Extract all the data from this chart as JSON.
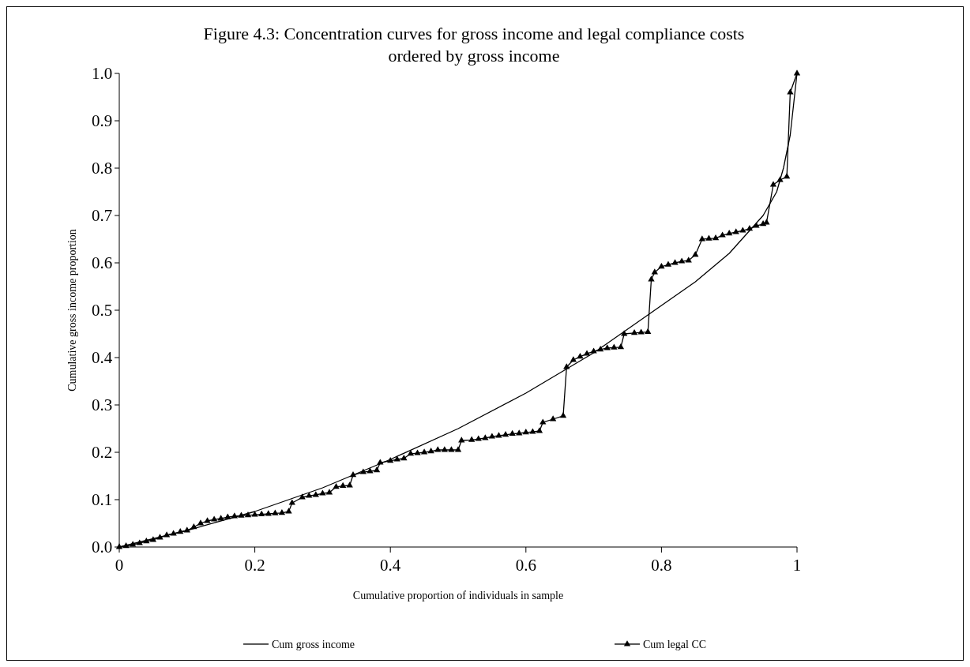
{
  "chart_data": {
    "type": "line",
    "title": "Figure 4.3: Concentration curves for gross income and legal compliance costs ordered by gross income",
    "xlabel": "Cumulative proportion of individuals in sample",
    "ylabel": "Cumulative gross income proportion",
    "xlim": [
      0,
      1
    ],
    "xticks": [
      0,
      0.2,
      0.4,
      0.6,
      0.8,
      1
    ],
    "ylim": [
      0,
      1
    ],
    "yticks": [
      {
        "value": 0,
        "label": "0.0"
      },
      0.1,
      0.2,
      0.3,
      0.4,
      0.5,
      0.6,
      0.7,
      0.8,
      0.9,
      {
        "value": 1,
        "label": "1.0"
      }
    ],
    "grid": false,
    "legend": "bottom",
    "series": [
      {
        "name": "Cum gross income",
        "color": "#000000",
        "marker": "none",
        "x": [
          0,
          0.1,
          0.2,
          0.3,
          0.4,
          0.5,
          0.6,
          0.7,
          0.8,
          0.85,
          0.9,
          0.95,
          0.97,
          0.98,
          0.99,
          1
        ],
        "values": [
          0,
          0.035,
          0.075,
          0.125,
          0.185,
          0.25,
          0.325,
          0.41,
          0.51,
          0.56,
          0.62,
          0.7,
          0.75,
          0.8,
          0.87,
          1
        ]
      },
      {
        "name": "Cum legal CC",
        "color": "#000000",
        "marker": "triangle",
        "x": [
          0,
          0.01,
          0.02,
          0.03,
          0.04,
          0.05,
          0.06,
          0.07,
          0.08,
          0.09,
          0.1,
          0.11,
          0.12,
          0.13,
          0.14,
          0.15,
          0.16,
          0.17,
          0.18,
          0.19,
          0.2,
          0.21,
          0.22,
          0.23,
          0.24,
          0.25,
          0.255,
          0.27,
          0.28,
          0.29,
          0.3,
          0.31,
          0.32,
          0.33,
          0.34,
          0.345,
          0.36,
          0.37,
          0.38,
          0.385,
          0.4,
          0.41,
          0.42,
          0.43,
          0.44,
          0.45,
          0.46,
          0.47,
          0.48,
          0.49,
          0.5,
          0.505,
          0.52,
          0.53,
          0.54,
          0.55,
          0.56,
          0.57,
          0.58,
          0.59,
          0.6,
          0.61,
          0.62,
          0.625,
          0.64,
          0.655,
          0.66,
          0.67,
          0.68,
          0.69,
          0.7,
          0.71,
          0.72,
          0.73,
          0.74,
          0.745,
          0.76,
          0.77,
          0.78,
          0.785,
          0.79,
          0.8,
          0.81,
          0.82,
          0.83,
          0.84,
          0.85,
          0.86,
          0.87,
          0.88,
          0.89,
          0.9,
          0.91,
          0.92,
          0.93,
          0.94,
          0.95,
          0.955,
          0.965,
          0.975,
          0.985,
          0.99,
          1
        ],
        "values": [
          0,
          0.002,
          0.005,
          0.008,
          0.012,
          0.015,
          0.02,
          0.025,
          0.028,
          0.032,
          0.035,
          0.042,
          0.05,
          0.055,
          0.058,
          0.06,
          0.063,
          0.065,
          0.066,
          0.067,
          0.068,
          0.069,
          0.07,
          0.071,
          0.072,
          0.075,
          0.093,
          0.105,
          0.108,
          0.11,
          0.113,
          0.115,
          0.127,
          0.129,
          0.13,
          0.152,
          0.158,
          0.16,
          0.162,
          0.178,
          0.182,
          0.185,
          0.187,
          0.197,
          0.198,
          0.2,
          0.202,
          0.205,
          0.205,
          0.205,
          0.205,
          0.225,
          0.226,
          0.228,
          0.23,
          0.233,
          0.235,
          0.237,
          0.239,
          0.24,
          0.242,
          0.243,
          0.245,
          0.263,
          0.27,
          0.277,
          0.38,
          0.395,
          0.402,
          0.408,
          0.413,
          0.417,
          0.42,
          0.421,
          0.422,
          0.45,
          0.452,
          0.453,
          0.454,
          0.565,
          0.58,
          0.592,
          0.596,
          0.6,
          0.603,
          0.605,
          0.617,
          0.65,
          0.651,
          0.652,
          0.658,
          0.662,
          0.665,
          0.668,
          0.672,
          0.678,
          0.682,
          0.685,
          0.765,
          0.775,
          0.782,
          0.96,
          1
        ]
      }
    ]
  }
}
